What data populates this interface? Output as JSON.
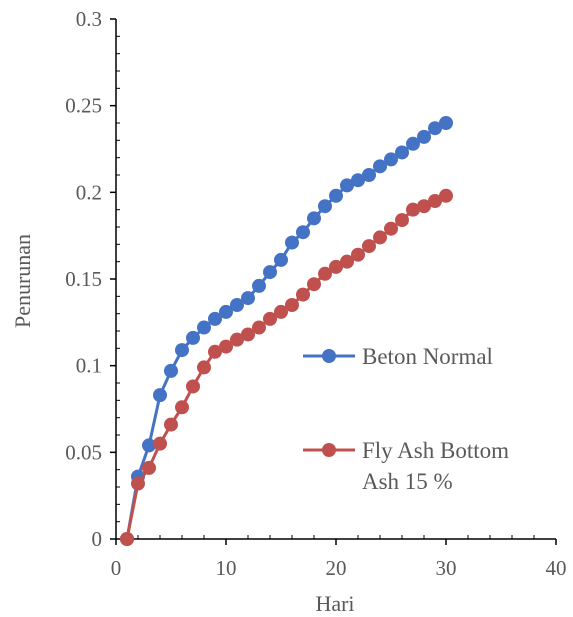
{
  "chart_data": {
    "type": "line",
    "xlabel": "Hari",
    "ylabel": "Penurunan",
    "xlim": [
      0,
      40
    ],
    "ylim": [
      0,
      0.3
    ],
    "x_ticks": [
      0,
      10,
      20,
      30,
      40
    ],
    "y_ticks": [
      0,
      0.05,
      0.1,
      0.15,
      0.2,
      0.25,
      0.3
    ],
    "x_tick_labels": [
      "0",
      "10",
      "20",
      "30",
      "40"
    ],
    "y_tick_labels": [
      "0",
      "0.05",
      "0.1",
      "0.15",
      "0.2",
      "0.25",
      "0.3"
    ],
    "grid": false,
    "legend_position": "right",
    "series": [
      {
        "name": "Beton Normal",
        "label_lines": [
          "Beton Normal"
        ],
        "color": "#4472C4",
        "x": [
          1,
          2,
          3,
          4,
          5,
          6,
          7,
          8,
          9,
          10,
          11,
          12,
          13,
          14,
          15,
          16,
          17,
          18,
          19,
          20,
          21,
          22,
          23,
          24,
          25,
          26,
          27,
          28,
          29,
          30
        ],
        "y": [
          0,
          0.036,
          0.054,
          0.083,
          0.097,
          0.109,
          0.116,
          0.122,
          0.127,
          0.131,
          0.135,
          0.139,
          0.146,
          0.154,
          0.161,
          0.171,
          0.177,
          0.185,
          0.192,
          0.198,
          0.204,
          0.207,
          0.21,
          0.215,
          0.219,
          0.223,
          0.228,
          0.232,
          0.237,
          0.24
        ]
      },
      {
        "name": "Fly Ash  Bottom Ash 15 %",
        "label_lines": [
          "Fly Ash  Bottom",
          "Ash 15 %"
        ],
        "color": "#C0504D",
        "x": [
          1,
          2,
          3,
          4,
          5,
          6,
          7,
          8,
          9,
          10,
          11,
          12,
          13,
          14,
          15,
          16,
          17,
          18,
          19,
          20,
          21,
          22,
          23,
          24,
          25,
          26,
          27,
          28,
          29,
          30
        ],
        "y": [
          0,
          0.032,
          0.041,
          0.055,
          0.066,
          0.076,
          0.088,
          0.099,
          0.108,
          0.111,
          0.115,
          0.118,
          0.122,
          0.127,
          0.131,
          0.135,
          0.141,
          0.147,
          0.153,
          0.157,
          0.16,
          0.164,
          0.169,
          0.174,
          0.179,
          0.184,
          0.19,
          0.192,
          0.195,
          0.198
        ]
      }
    ]
  }
}
